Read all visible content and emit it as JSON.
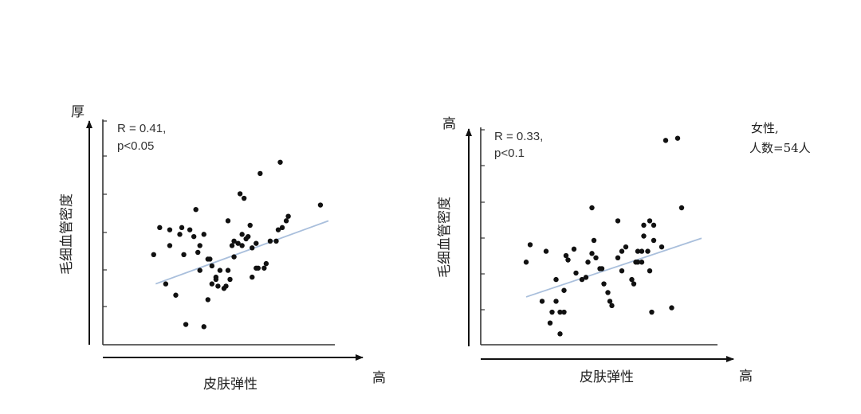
{
  "chart_data": [
    {
      "type": "scatter",
      "ylabel": "毛细血管密度",
      "xlabel": "皮肤弹性",
      "y_axis_end_label": "厚",
      "x_axis_end_label": "高",
      "stat_line1": "R = 0.41,",
      "stat_line2": "p<0.05",
      "xlim": [
        0,
        100
      ],
      "ylim": [
        0,
        100
      ],
      "trend": {
        "x": [
          14,
          100
        ],
        "y": [
          27,
          55
        ]
      },
      "points": {
        "x": [
          13,
          34,
          36,
          40,
          38,
          29,
          41,
          27,
          19,
          24,
          28,
          31,
          33,
          38,
          35,
          42,
          40,
          44,
          48,
          49,
          51,
          53,
          55,
          57,
          57,
          59,
          60,
          62,
          64,
          65,
          68,
          69,
          71,
          74,
          75,
          77,
          79,
          56,
          58,
          44,
          42,
          46,
          50,
          52,
          53,
          62,
          64,
          66,
          50,
          45,
          36,
          21,
          26,
          21,
          16,
          61,
          80,
          96,
          76
        ],
        "x_note": "",
        "y": [
          40,
          60,
          33,
          20,
          8,
          9,
          38,
          52,
          27,
          22,
          40,
          51,
          48,
          49,
          41,
          35,
          38,
          30,
          25,
          26,
          29,
          39,
          45,
          44,
          49,
          47,
          48,
          30,
          34,
          34,
          34,
          36,
          46,
          46,
          51,
          52,
          55,
          67,
          65,
          29,
          27,
          33,
          33,
          44,
          46,
          43,
          45,
          76,
          55,
          26,
          44,
          44,
          49,
          51,
          52,
          53,
          57,
          62,
          81
        ],
        "note": ""
      },
      "grid": false
    },
    {
      "type": "scatter",
      "ylabel": "毛细血管密度",
      "xlabel": "皮肤弹性",
      "y_axis_end_label": "高",
      "x_axis_end_label": "高",
      "stat_line1": "R = 0.33,",
      "stat_line2": "p<0.1",
      "annotation_line1": "女性,",
      "annotation_line2": "人数=54人",
      "xlim": [
        0,
        100
      ],
      "ylim": [
        0,
        100
      ],
      "trend": {
        "x": [
          12,
          100
        ],
        "y": [
          22,
          49
        ]
      },
      "points": {
        "x": [
          12,
          20,
          24,
          27,
          29,
          29,
          25,
          31,
          32,
          31,
          33,
          36,
          43,
          45,
          46,
          49,
          47,
          50,
          51,
          54,
          53,
          55,
          58,
          58,
          60,
          62,
          60,
          65,
          66,
          67,
          68,
          68,
          70,
          70,
          71,
          73,
          71,
          74,
          74,
          76,
          76,
          80,
          90,
          88,
          82,
          85,
          45,
          42,
          40,
          14,
          37,
          27,
          22,
          75
        ],
        "y": [
          38,
          20,
          10,
          30,
          15,
          5,
          15,
          25,
          41,
          15,
          39,
          44,
          38,
          42,
          48,
          35,
          40,
          35,
          28,
          20,
          24,
          18,
          57,
          40,
          34,
          45,
          43,
          30,
          28,
          38,
          38,
          43,
          38,
          43,
          50,
          43,
          55,
          57,
          34,
          48,
          55,
          45,
          63,
          95,
          94,
          17,
          63,
          31,
          30,
          46,
          33,
          20,
          43,
          15
        ],
        "note": ""
      },
      "grid": false
    }
  ]
}
